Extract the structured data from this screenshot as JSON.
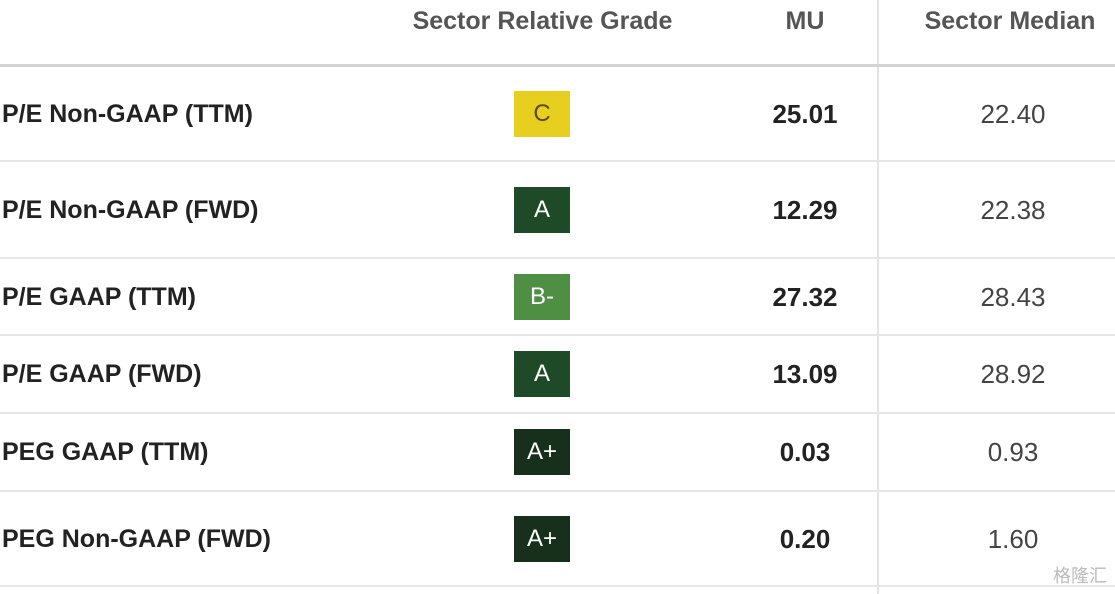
{
  "table": {
    "header": [
      "Sector Relative Grade",
      "MU",
      "Sector Median"
    ],
    "rows": [
      {
        "metric": "P/E Non-GAAP (TTM)",
        "grade": "C",
        "grade_color": "#e6cf1e",
        "grade_text_color": "#5a4a10",
        "mu": "25.01",
        "median": "22.40"
      },
      {
        "metric": "P/E Non-GAAP (FWD)",
        "grade": "A",
        "grade_color": "#1f4a28",
        "grade_text_color": "#ffffff",
        "mu": "12.29",
        "median": "22.38"
      },
      {
        "metric": "P/E GAAP (TTM)",
        "grade": "B-",
        "grade_color": "#4f8f43",
        "grade_text_color": "#ffffff",
        "mu": "27.32",
        "median": "28.43"
      },
      {
        "metric": "P/E GAAP (FWD)",
        "grade": "A",
        "grade_color": "#1f4a28",
        "grade_text_color": "#ffffff",
        "mu": "13.09",
        "median": "28.92"
      },
      {
        "metric": "PEG GAAP (TTM)",
        "grade": "A+",
        "grade_color": "#16301b",
        "grade_text_color": "#ffffff",
        "mu": "0.03",
        "median": "0.93"
      },
      {
        "metric": "PEG Non-GAAP (FWD)",
        "grade": "A+",
        "grade_color": "#16301b",
        "grade_text_color": "#ffffff",
        "mu": "0.20",
        "median": "1.60"
      }
    ]
  },
  "watermark": "格隆汇"
}
